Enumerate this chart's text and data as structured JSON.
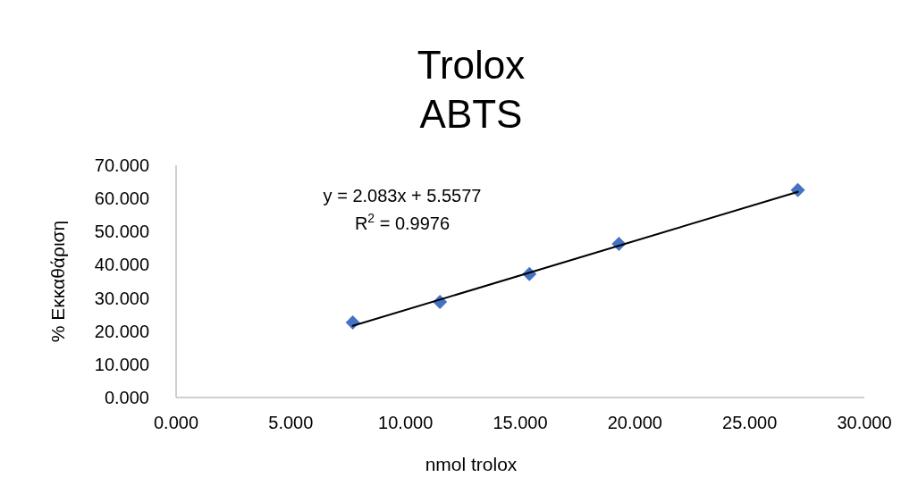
{
  "chart_data": {
    "type": "scatter",
    "title": "Trolox\nABTS",
    "xlabel": "nmol trolox",
    "ylabel": "% Εκκαθάριση",
    "xlim": [
      0,
      30
    ],
    "xticks": [
      {
        "value": 0,
        "label": "0.000"
      },
      {
        "value": 5,
        "label": "5.000"
      },
      {
        "value": 10,
        "label": "10.000"
      },
      {
        "value": 15,
        "label": "15.000"
      },
      {
        "value": 20,
        "label": "20.000"
      },
      {
        "value": 25,
        "label": "25.000"
      },
      {
        "value": 30,
        "label": "30.000"
      }
    ],
    "ylim": [
      0,
      70
    ],
    "yticks": [
      {
        "value": 0,
        "label": "0.000"
      },
      {
        "value": 10,
        "label": "10.000"
      },
      {
        "value": 20,
        "label": "20.000"
      },
      {
        "value": 30,
        "label": "30.000"
      },
      {
        "value": 40,
        "label": "40.000"
      },
      {
        "value": 50,
        "label": "50.000"
      },
      {
        "value": 60,
        "label": "60.000"
      },
      {
        "value": 70,
        "label": "70.000"
      }
    ],
    "grid": false,
    "series": [
      {
        "marker": "diamond",
        "color": "#4472c4",
        "x": [
          7.7,
          11.5,
          15.4,
          19.3,
          27.1
        ],
        "values": [
          22.6,
          28.8,
          37.2,
          46.3,
          62.5
        ]
      },
      {
        "type": "line",
        "marker": "none",
        "color": "#000000",
        "x": [
          7.7,
          27.1
        ],
        "values": [
          21.6,
          62.0
        ]
      }
    ],
    "annotations": [
      {
        "text": "y = 2.083x + 5.5577"
      },
      {
        "text": "R$^{2}$ = 0.9976"
      }
    ]
  }
}
